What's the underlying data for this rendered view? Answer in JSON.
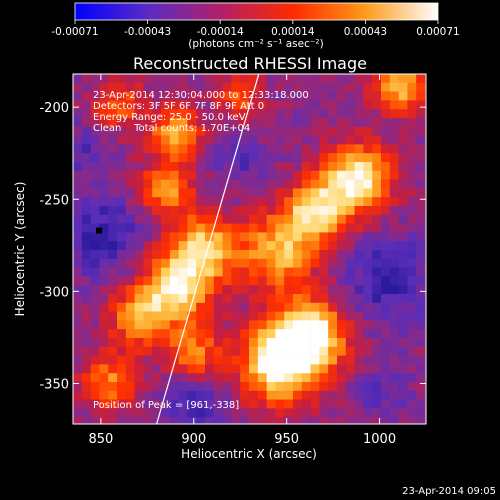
{
  "chart_data": {
    "type": "heatmap",
    "title": "Reconstructed RHESSI Image",
    "xlabel": "Heliocentric X (arcsec)",
    "ylabel": "Heliocentric Y (arcsec)",
    "xlim": [
      835,
      1025
    ],
    "ylim": [
      -372,
      -182
    ],
    "x_ticks": [
      850,
      900,
      950,
      1000
    ],
    "y_ticks": [
      -350,
      -300,
      -250,
      -200
    ],
    "colorbar": {
      "ticks": [
        "-0.00071",
        "-0.00043",
        "-0.00014",
        "0.00014",
        "0.00043",
        "0.00071"
      ],
      "range": [
        -0.00071,
        0.00071
      ],
      "units_label": "(photons cm⁻² s⁻¹ asec⁻²)",
      "stops": [
        "#0000ff",
        "#5a2bc4",
        "#b0206a",
        "#ff2a00",
        "#ff9a1a",
        "#ffffff"
      ]
    },
    "annotations": [
      "23-Apr-2014 12:30:04.000 to 12:33:18.000",
      "Detectors: 3F 5F 6F 7F 8F 9F Att 0",
      "Energy Range: 25.0 - 50.0 keV",
      "Clean    Total counts: 1.70E+04"
    ],
    "peak_label": "Position of Peak = [961,-338]",
    "limb_line": [
      [
        880,
        -372
      ],
      [
        935,
        -182
      ]
    ],
    "timestamp": "23-Apr-2014 09:05",
    "bright_regions": [
      {
        "x": 988,
        "y": -240,
        "s": 13,
        "a": 0.95
      },
      {
        "x": 965,
        "y": -258,
        "s": 12,
        "a": 0.8
      },
      {
        "x": 945,
        "y": -280,
        "s": 14,
        "a": 0.7
      },
      {
        "x": 962,
        "y": -325,
        "s": 14,
        "a": 1.0
      },
      {
        "x": 945,
        "y": -340,
        "s": 15,
        "a": 0.9
      },
      {
        "x": 905,
        "y": -278,
        "s": 13,
        "a": 0.8
      },
      {
        "x": 890,
        "y": -300,
        "s": 13,
        "a": 0.8
      },
      {
        "x": 870,
        "y": -315,
        "s": 11,
        "a": 0.6
      },
      {
        "x": 900,
        "y": -335,
        "s": 11,
        "a": 0.55
      },
      {
        "x": 885,
        "y": -245,
        "s": 10,
        "a": 0.6
      },
      {
        "x": 890,
        "y": -215,
        "s": 10,
        "a": 0.65
      },
      {
        "x": 1010,
        "y": -190,
        "s": 10,
        "a": 0.75
      },
      {
        "x": 855,
        "y": -350,
        "s": 11,
        "a": 0.55
      },
      {
        "x": 925,
        "y": -195,
        "s": 9,
        "a": 0.45
      },
      {
        "x": 860,
        "y": -200,
        "s": 10,
        "a": 0.45
      }
    ],
    "dark_regions": [
      {
        "x": 850,
        "y": -270,
        "s": 14,
        "a": 0.9
      },
      {
        "x": 900,
        "y": -360,
        "s": 13,
        "a": 0.75
      },
      {
        "x": 1005,
        "y": -295,
        "s": 16,
        "a": 0.85
      },
      {
        "x": 925,
        "y": -230,
        "s": 9,
        "a": 0.5
      },
      {
        "x": 1000,
        "y": -355,
        "s": 9,
        "a": 0.5
      },
      {
        "x": 840,
        "y": -225,
        "s": 9,
        "a": 0.5
      }
    ]
  }
}
